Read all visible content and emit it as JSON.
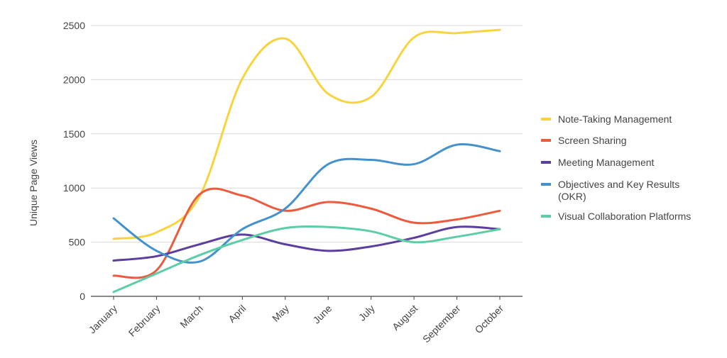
{
  "chart_data": {
    "type": "line",
    "title": "",
    "xlabel": "",
    "ylabel": "Unique Page Views",
    "ylim": [
      0,
      2500
    ],
    "yticks": [
      0,
      500,
      1000,
      1500,
      2000,
      2500
    ],
    "grid": true,
    "legend_position": "right",
    "categories": [
      "January",
      "February",
      "March",
      "April",
      "May",
      "June",
      "July",
      "August",
      "September",
      "October"
    ],
    "series": [
      {
        "name": "Note-Taking Management",
        "color": "#F9D33F",
        "values": [
          530,
          590,
          920,
          2010,
          2380,
          1870,
          1840,
          2390,
          2430,
          2460
        ]
      },
      {
        "name": "Screen Sharing",
        "color": "#EE5A3E",
        "values": [
          190,
          240,
          940,
          930,
          790,
          870,
          810,
          680,
          710,
          790
        ]
      },
      {
        "name": "Meeting Management",
        "color": "#5C3E9E",
        "values": [
          330,
          370,
          480,
          570,
          480,
          420,
          460,
          540,
          640,
          620
        ]
      },
      {
        "name": "Objectives and Key Results (OKR)",
        "color": "#4392CE",
        "values": [
          720,
          420,
          320,
          620,
          810,
          1220,
          1260,
          1220,
          1400,
          1340
        ]
      },
      {
        "name": "Visual Collaboration Platforms",
        "color": "#5BCEA5",
        "values": [
          40,
          210,
          380,
          520,
          630,
          640,
          600,
          500,
          550,
          620
        ]
      }
    ]
  }
}
